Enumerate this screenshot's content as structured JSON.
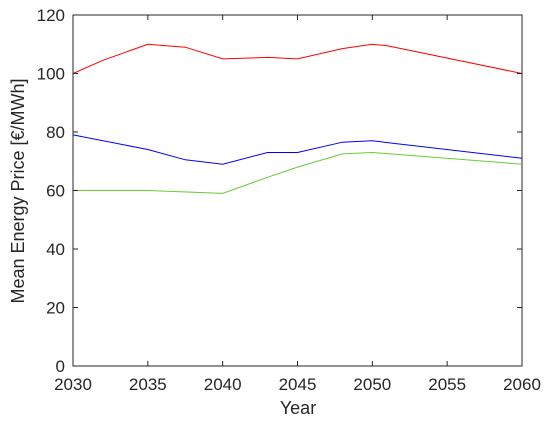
{
  "chart_data": {
    "type": "line",
    "xlabel": "Year",
    "ylabel": "Mean Energy Price [€/MWh]",
    "xlim": [
      2030,
      2060
    ],
    "ylim": [
      0,
      120
    ],
    "xticks": [
      2030,
      2035,
      2040,
      2045,
      2050,
      2055,
      2060
    ],
    "yticks": [
      0,
      20,
      40,
      60,
      80,
      100,
      120
    ],
    "grid": false,
    "legend": "none",
    "series": [
      {
        "color": "#ff0000",
        "x": [
          2030,
          2032,
          2035,
          2037.5,
          2040,
          2043,
          2045,
          2048,
          2050,
          2051,
          2060
        ],
        "y": [
          100,
          104.5,
          110,
          109,
          105,
          105.5,
          105,
          108.5,
          110,
          109.5,
          100
        ]
      },
      {
        "color": "#0000ff",
        "x": [
          2030,
          2035,
          2037.5,
          2040,
          2043,
          2045,
          2048,
          2050,
          2060
        ],
        "y": [
          79,
          74,
          70.5,
          69,
          73,
          73,
          76.5,
          77,
          71
        ]
      },
      {
        "color": "#66cc33",
        "x": [
          2030,
          2035,
          2040,
          2043,
          2045,
          2048,
          2050,
          2060
        ],
        "y": [
          60,
          60,
          59,
          64.5,
          68,
          72.5,
          73,
          69
        ]
      }
    ]
  }
}
